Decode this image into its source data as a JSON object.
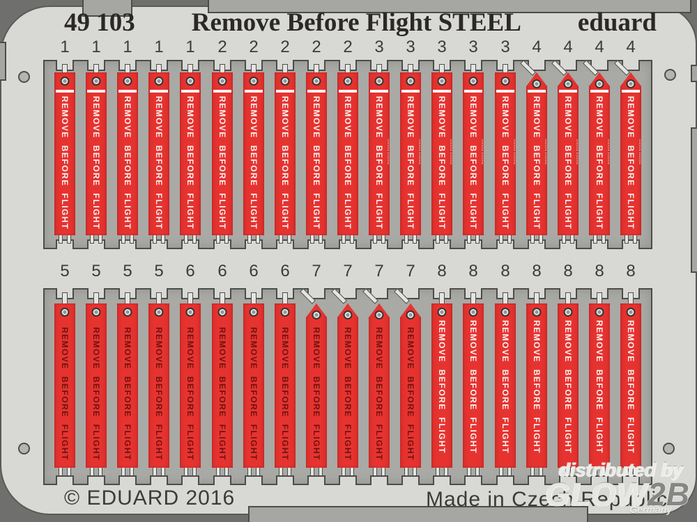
{
  "header": {
    "catalog_number": "49 103",
    "title": "Remove Before Flight STEEL",
    "brand": "eduard"
  },
  "footer": {
    "copyright": "© EDUARD 2016",
    "origin": "Made in Czech Republic"
  },
  "watermark": {
    "line1": "distributed by",
    "line2_part1": "GLOW",
    "line2_part2": "2B",
    "line3": "Germany"
  },
  "tag_label": {
    "text": "REMOVE BEFORE FLIGHT",
    "micro_text_illegible": "tritiitiim tritiitiim"
  },
  "tag_types": {
    "1": {
      "shape": "flat",
      "text_color": "white",
      "has_bar": true,
      "has_micro": false
    },
    "2": {
      "shape": "flat",
      "text_color": "white",
      "has_bar": true,
      "has_micro": false
    },
    "3": {
      "shape": "flat",
      "text_color": "white",
      "has_bar": true,
      "has_micro": true
    },
    "4": {
      "shape": "pointed",
      "text_color": "white",
      "has_bar": true,
      "has_micro": true
    },
    "5": {
      "shape": "flat",
      "text_color": "dark",
      "has_bar": false,
      "has_micro": false
    },
    "6": {
      "shape": "flat",
      "text_color": "dark",
      "has_bar": false,
      "has_micro": false
    },
    "7": {
      "shape": "pointed",
      "text_color": "dark",
      "has_bar": false,
      "has_micro": false
    },
    "8": {
      "shape": "flat",
      "text_color": "white",
      "has_bar": false,
      "has_micro": false
    }
  },
  "rows": [
    {
      "numbers": [
        "1",
        "1",
        "1",
        "1",
        "1",
        "2",
        "2",
        "2",
        "2",
        "2",
        "3",
        "3",
        "3",
        "3",
        "3",
        "4",
        "4",
        "4",
        "4"
      ]
    },
    {
      "numbers": [
        "5",
        "5",
        "5",
        "5",
        "6",
        "6",
        "6",
        "6",
        "7",
        "7",
        "7",
        "7",
        "8",
        "8",
        "8",
        "8",
        "8",
        "8",
        "8"
      ]
    }
  ],
  "colors": {
    "tag_red": "#e73330",
    "card_gray": "#d8d8d5",
    "plate_gray": "#a9a9a5",
    "frame_dark_gray": "#6f6f6d",
    "tab_gray": "#a6a6a3",
    "outline_dark": "#4c4c4a",
    "white_ink": "#f8f4f2",
    "dark_red_ink": "#6b1410",
    "text_dark_gray": "#3b3b39"
  }
}
